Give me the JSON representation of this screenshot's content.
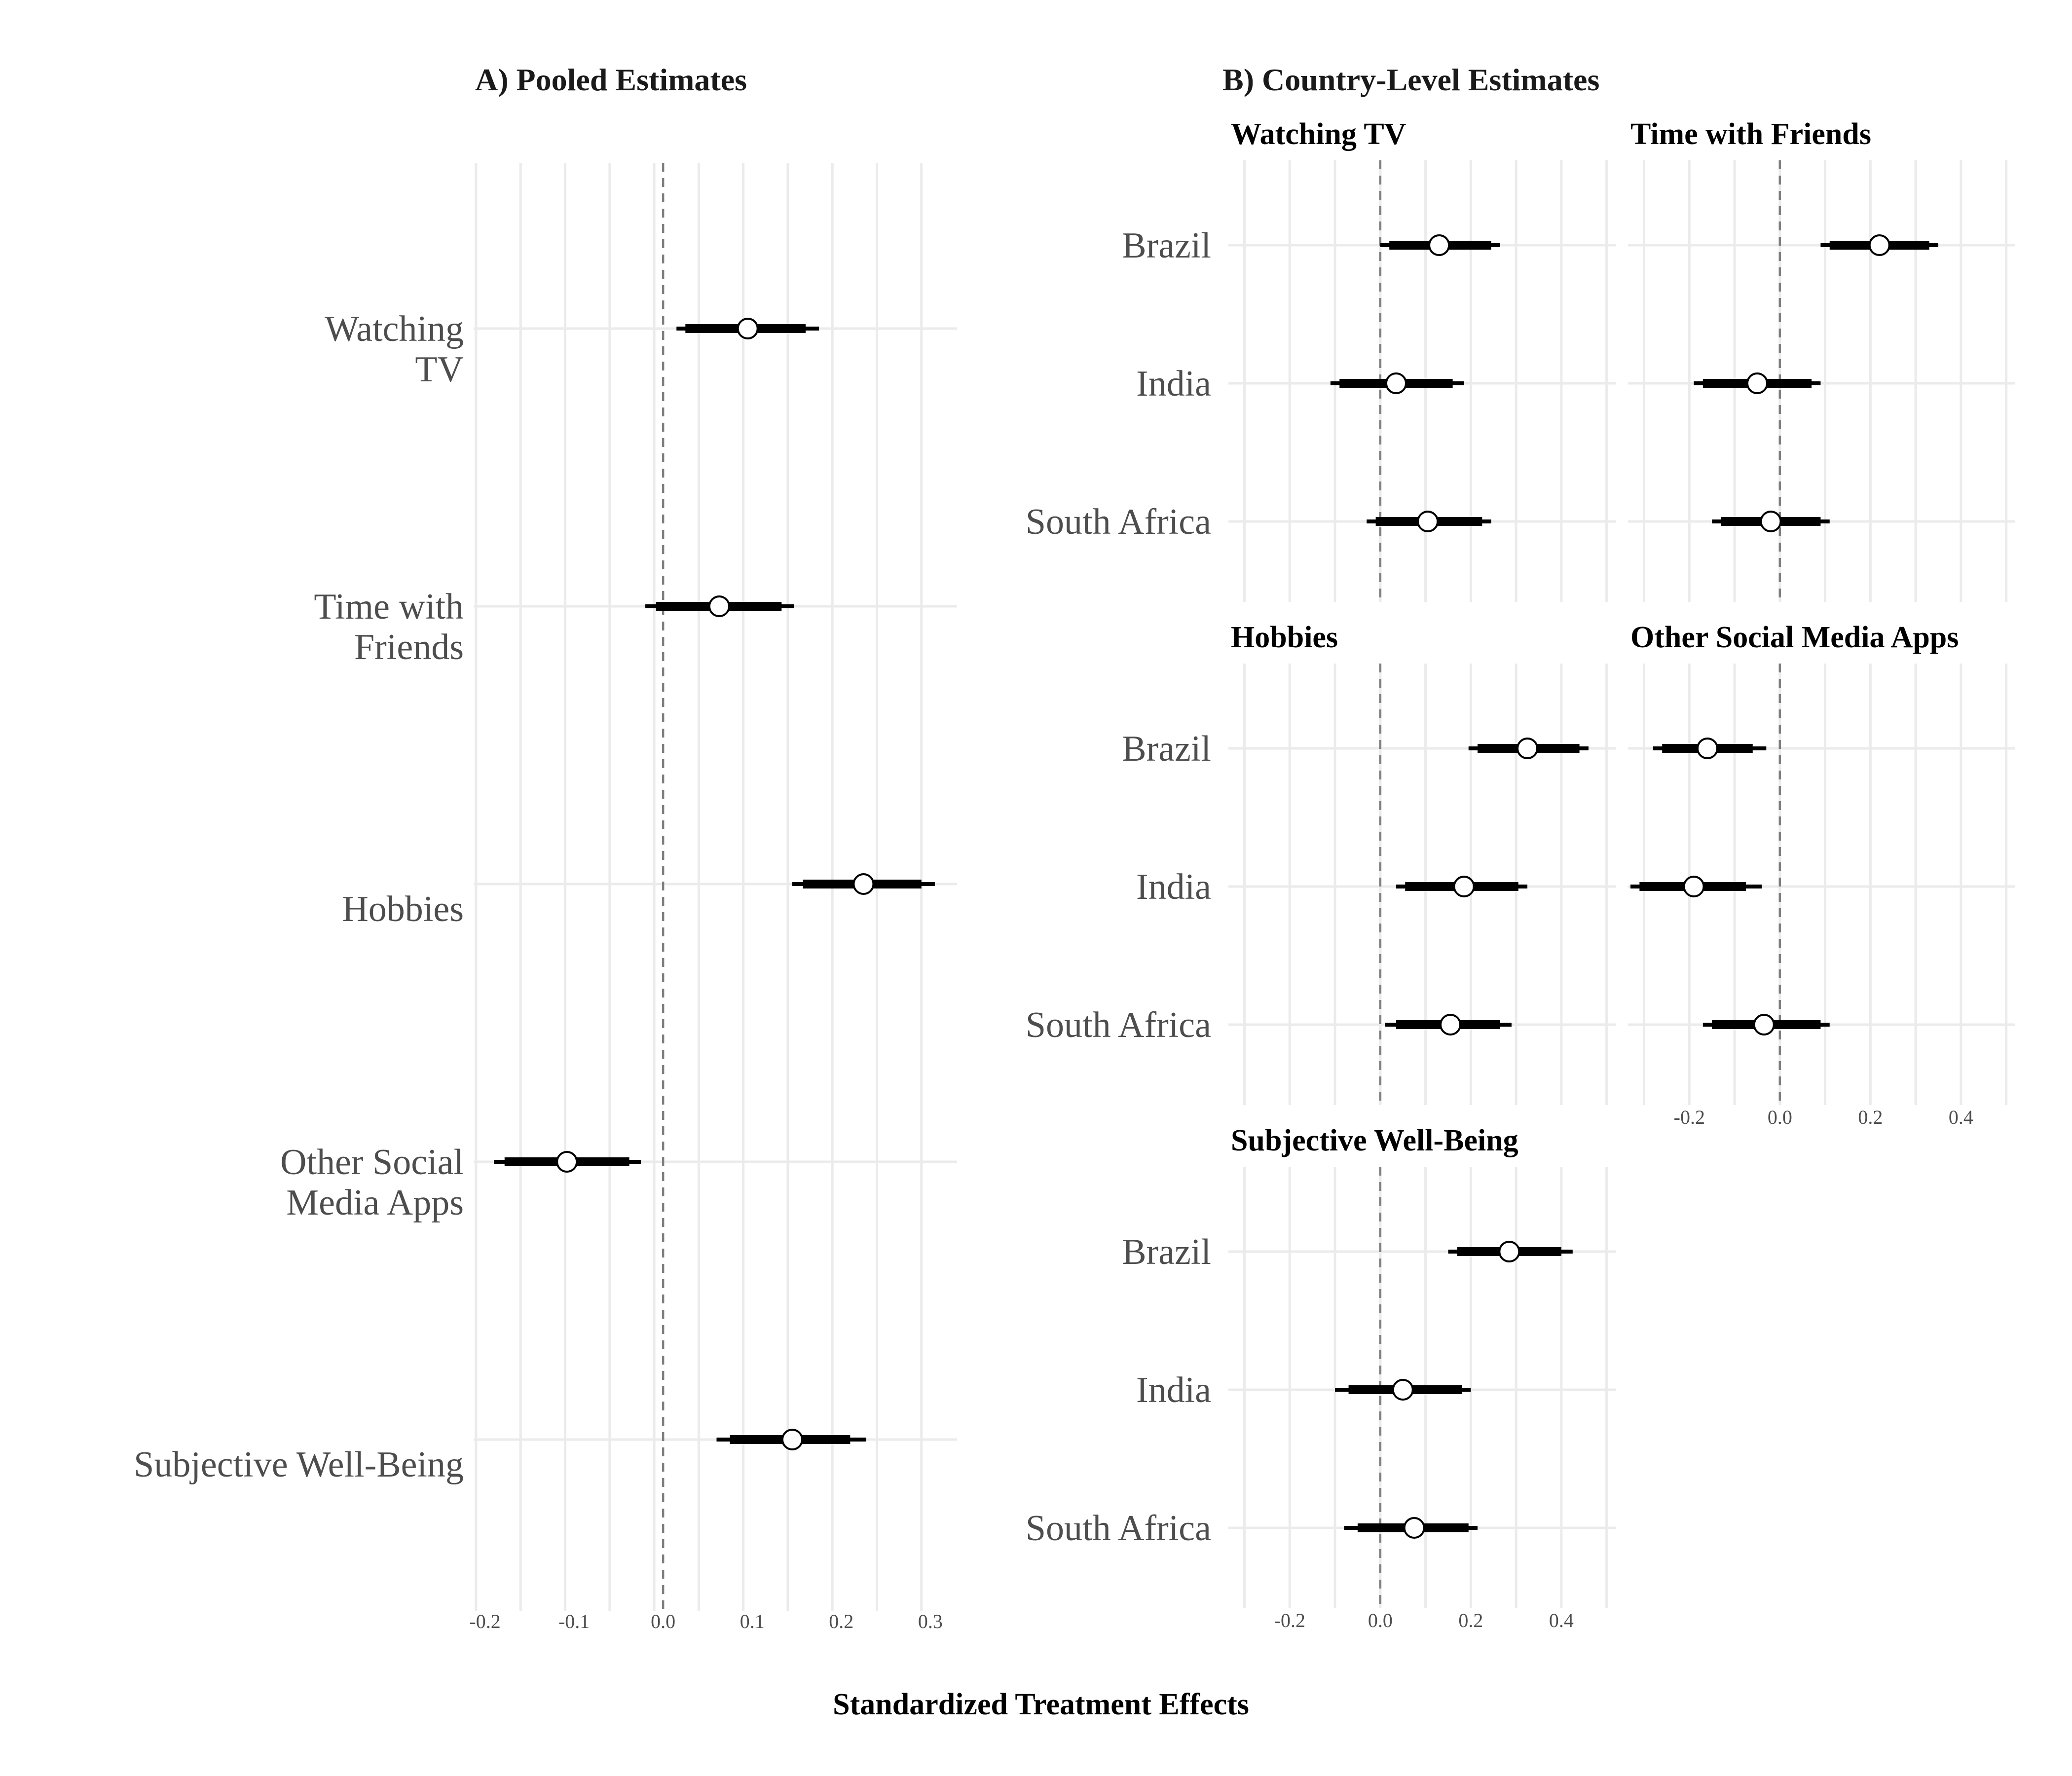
{
  "chart_data": [
    {
      "type": "forest",
      "title": "A) Pooled Estimates",
      "xlabel": "Standardized Treatment Effects",
      "xlim": [
        -0.21,
        0.33
      ],
      "xticks": [
        -0.2,
        -0.1,
        0.0,
        0.1,
        0.2,
        0.3
      ],
      "xtick_labels": [
        "-0.2",
        "-0.1",
        "0.0",
        "0.1",
        "0.2",
        "0.3"
      ],
      "reference_line": 0,
      "grid": true,
      "categories": [
        "Watching\nTV",
        "Time with\nFriends",
        "Hobbies",
        "Other Social\nMedia Apps",
        "Subjective Well-Being"
      ],
      "estimates": [
        {
          "category": "Watching TV",
          "estimate": 0.095,
          "ci90": [
            0.025,
            0.16
          ],
          "ci95": [
            0.015,
            0.175
          ]
        },
        {
          "category": "Time with Friends",
          "estimate": 0.063,
          "ci90": [
            -0.008,
            0.133
          ],
          "ci95": [
            -0.02,
            0.147
          ]
        },
        {
          "category": "Hobbies",
          "estimate": 0.225,
          "ci90": [
            0.157,
            0.29
          ],
          "ci95": [
            0.145,
            0.305
          ]
        },
        {
          "category": "Other Social Media Apps",
          "estimate": -0.108,
          "ci90": [
            -0.178,
            -0.038
          ],
          "ci95": [
            -0.19,
            -0.025
          ]
        },
        {
          "category": "Subjective Well-Being",
          "estimate": 0.145,
          "ci90": [
            0.075,
            0.21
          ],
          "ci95": [
            0.06,
            0.228
          ]
        }
      ]
    },
    {
      "type": "forest",
      "title": "B) Country-Level Estimates",
      "xlabel": "Standardized Treatment Effects",
      "xlim": [
        -0.33,
        0.52
      ],
      "xticks": [
        -0.2,
        0.0,
        0.2,
        0.4
      ],
      "xtick_labels": [
        "-0.2",
        "0.0",
        "0.2",
        "0.4"
      ],
      "reference_line": 0,
      "grid": true,
      "categories": [
        "Brazil",
        "India",
        "South Africa"
      ],
      "facets": [
        {
          "title": "Watching TV",
          "estimates": [
            {
              "category": "Brazil",
              "estimate": 0.13,
              "ci90": [
                0.02,
                0.245
              ],
              "ci95": [
                0.0,
                0.265
              ]
            },
            {
              "category": "India",
              "estimate": 0.035,
              "ci90": [
                -0.09,
                0.16
              ],
              "ci95": [
                -0.11,
                0.185
              ]
            },
            {
              "category": "South Africa",
              "estimate": 0.105,
              "ci90": [
                -0.01,
                0.225
              ],
              "ci95": [
                -0.03,
                0.245
              ]
            }
          ]
        },
        {
          "title": "Time with Friends",
          "estimates": [
            {
              "category": "Brazil",
              "estimate": 0.22,
              "ci90": [
                0.11,
                0.33
              ],
              "ci95": [
                0.09,
                0.35
              ]
            },
            {
              "category": "India",
              "estimate": -0.05,
              "ci90": [
                -0.17,
                0.07
              ],
              "ci95": [
                -0.19,
                0.09
              ]
            },
            {
              "category": "South Africa",
              "estimate": -0.02,
              "ci90": [
                -0.13,
                0.09
              ],
              "ci95": [
                -0.15,
                0.11
              ]
            }
          ]
        },
        {
          "title": "Hobbies",
          "estimates": [
            {
              "category": "Brazil",
              "estimate": 0.325,
              "ci90": [
                0.215,
                0.44
              ],
              "ci95": [
                0.195,
                0.46
              ]
            },
            {
              "category": "India",
              "estimate": 0.185,
              "ci90": [
                0.055,
                0.305
              ],
              "ci95": [
                0.035,
                0.325
              ]
            },
            {
              "category": "South Africa",
              "estimate": 0.155,
              "ci90": [
                0.035,
                0.265
              ],
              "ci95": [
                0.01,
                0.29
              ]
            }
          ]
        },
        {
          "title": "Other Social Media Apps",
          "estimates": [
            {
              "category": "Brazil",
              "estimate": -0.16,
              "ci90": [
                -0.26,
                -0.06
              ],
              "ci95": [
                -0.28,
                -0.03
              ]
            },
            {
              "category": "India",
              "estimate": -0.19,
              "ci90": [
                -0.31,
                -0.075
              ],
              "ci95": [
                -0.33,
                -0.04
              ]
            },
            {
              "category": "South Africa",
              "estimate": -0.035,
              "ci90": [
                -0.15,
                0.09
              ],
              "ci95": [
                -0.17,
                0.11
              ]
            }
          ]
        },
        {
          "title": "Subjective Well-Being",
          "estimates": [
            {
              "category": "Brazil",
              "estimate": 0.285,
              "ci90": [
                0.17,
                0.4
              ],
              "ci95": [
                0.15,
                0.425
              ]
            },
            {
              "category": "India",
              "estimate": 0.05,
              "ci90": [
                -0.07,
                0.18
              ],
              "ci95": [
                -0.1,
                0.2
              ]
            },
            {
              "category": "South Africa",
              "estimate": 0.075,
              "ci90": [
                -0.05,
                0.195
              ],
              "ci95": [
                -0.08,
                0.215
              ]
            }
          ]
        }
      ]
    }
  ]
}
